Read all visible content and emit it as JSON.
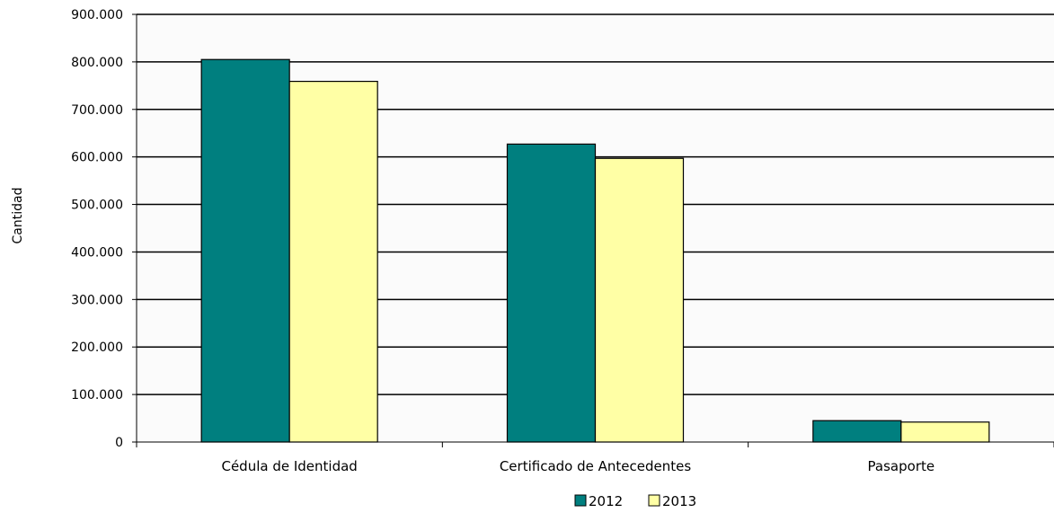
{
  "chart_data": {
    "type": "bar",
    "title": "",
    "xlabel": "",
    "ylabel": "Cantidad",
    "categories": [
      "Cédula de Identidad",
      "Certificado de Antecedentes",
      "Pasaporte"
    ],
    "series": [
      {
        "name": "2012",
        "color": "#007f7f",
        "values": [
          805000,
          627000,
          45000
        ]
      },
      {
        "name": "2013",
        "color": "#ffffa5",
        "values": [
          759000,
          597000,
          42000
        ]
      }
    ],
    "ylim": [
      0,
      900000
    ],
    "yticks": [
      0,
      100000,
      200000,
      300000,
      400000,
      500000,
      600000,
      700000,
      800000,
      900000
    ],
    "ytick_labels": [
      "0",
      "100.000",
      "200.000",
      "300.000",
      "400.000",
      "500.000",
      "600.000",
      "700.000",
      "800.000",
      "900.000"
    ],
    "grid": true,
    "legend_position": "bottom-center"
  }
}
